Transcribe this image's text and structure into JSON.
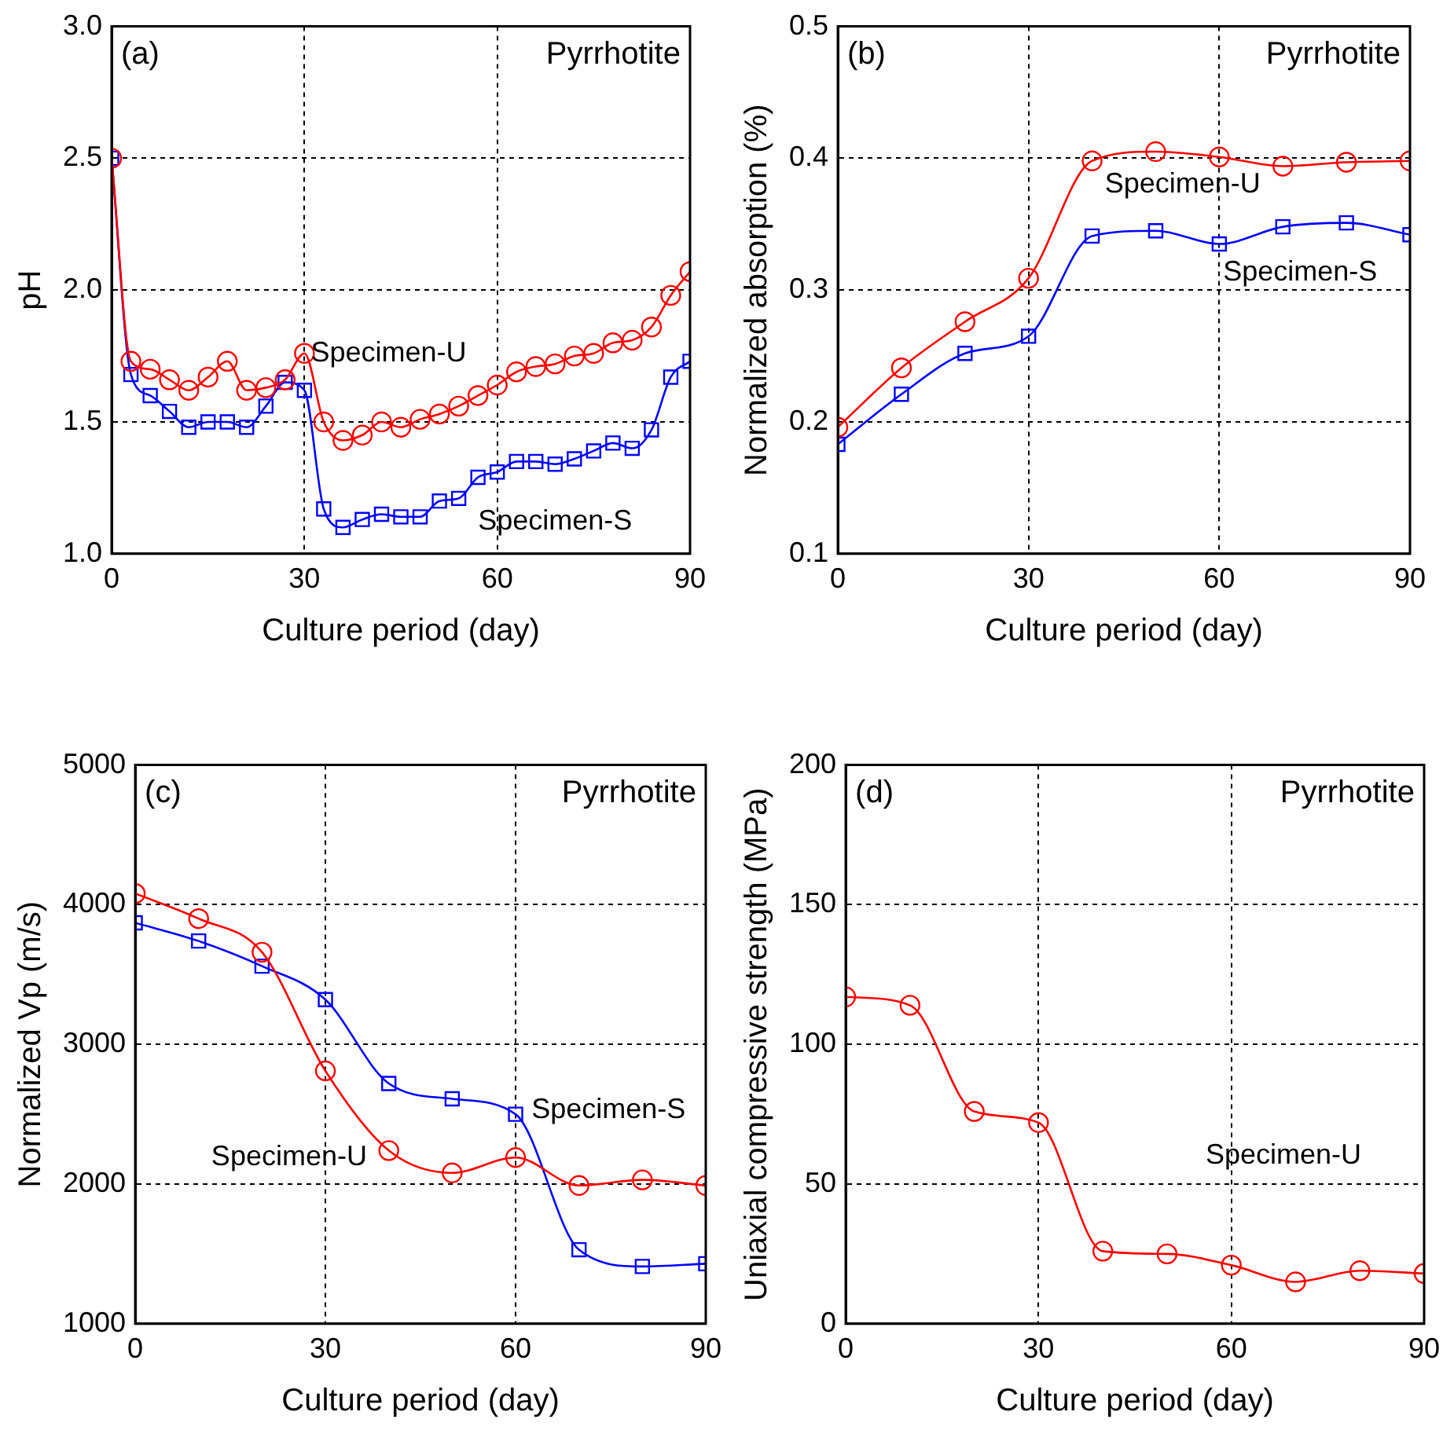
{
  "chart_data": [
    {
      "type": "line",
      "title": "Pyrrhotite",
      "annotations": [
        "(a)"
      ],
      "xlabel": "Culture period (day)",
      "ylabel": "pH",
      "x": [
        0,
        3,
        6,
        9,
        12,
        15,
        18,
        21,
        24,
        27,
        30,
        33,
        36,
        39,
        42,
        45,
        48,
        51,
        54,
        57,
        60,
        63,
        66,
        69,
        72,
        75,
        78,
        81,
        84,
        87,
        90
      ],
      "xlim": [
        0,
        90
      ],
      "xticks": [
        0,
        30,
        60,
        90
      ],
      "ylim": [
        1,
        3
      ],
      "yticks": [
        {
          "value": 1,
          "label": "1.0"
        },
        1.5,
        {
          "value": 2,
          "label": "2.0"
        },
        2.5,
        {
          "value": 3,
          "label": "3.0"
        }
      ],
      "grid": true,
      "series": [
        {
          "name": "Specimen-U",
          "color": "#ff0000",
          "marker": "circle",
          "values": [
            2.5,
            1.73,
            1.7,
            1.66,
            1.62,
            1.67,
            1.73,
            1.62,
            1.63,
            1.66,
            1.76,
            1.5,
            1.43,
            1.45,
            1.5,
            1.48,
            1.51,
            1.53,
            1.56,
            1.6,
            1.64,
            1.69,
            1.71,
            1.72,
            1.75,
            1.76,
            1.8,
            1.81,
            1.86,
            1.98,
            2.07
          ]
        },
        {
          "name": "Specimen-S",
          "color": "#0000ff",
          "marker": "square",
          "values": [
            2.5,
            1.68,
            1.6,
            1.54,
            1.48,
            1.5,
            1.5,
            1.48,
            1.56,
            1.65,
            1.62,
            1.17,
            1.1,
            1.13,
            1.15,
            1.14,
            1.14,
            1.2,
            1.21,
            1.29,
            1.31,
            1.35,
            1.35,
            1.34,
            1.36,
            1.39,
            1.42,
            1.4,
            1.47,
            1.67,
            1.73
          ]
        }
      ]
    },
    {
      "type": "line",
      "title": "Pyrrhotite",
      "annotations": [
        "(b)"
      ],
      "xlabel": "Culture period (day)",
      "ylabel": "Normalized absorption (%)",
      "x": [
        0,
        10,
        20,
        30,
        40,
        50,
        60,
        70,
        80,
        90
      ],
      "xlim": [
        0,
        90
      ],
      "xticks": [
        0,
        30,
        60,
        90
      ],
      "ylim": [
        0.1,
        0.5
      ],
      "yticks": [
        0.1,
        0.2,
        0.3,
        0.4,
        0.5
      ],
      "grid": true,
      "series": [
        {
          "name": "Specimen-U",
          "color": "#ff0000",
          "marker": "circle",
          "values": [
            0.196,
            0.241,
            0.276,
            0.309,
            0.398,
            0.405,
            0.401,
            0.394,
            0.397,
            0.398
          ]
        },
        {
          "name": "Specimen-S",
          "color": "#0000ff",
          "marker": "square",
          "values": [
            0.183,
            0.221,
            0.252,
            0.265,
            0.341,
            0.345,
            0.335,
            0.348,
            0.351,
            0.342
          ]
        }
      ]
    },
    {
      "type": "line",
      "title": "Pyrrhotite",
      "annotations": [
        "(c)"
      ],
      "xlabel": "Culture period (day)",
      "ylabel": "Normalized Vp (m/s)",
      "x": [
        0,
        10,
        20,
        30,
        40,
        50,
        60,
        70,
        80,
        90
      ],
      "xlim": [
        0,
        90
      ],
      "xticks": [
        0,
        30,
        60,
        90
      ],
      "ylim": [
        1000,
        5000
      ],
      "yticks": [
        1000,
        2000,
        3000,
        4000,
        5000
      ],
      "grid": true,
      "series": [
        {
          "name": "Specimen-U",
          "color": "#ff0000",
          "marker": "circle",
          "values": [
            4080,
            3900,
            3660,
            2810,
            2240,
            2080,
            2190,
            1990,
            2030,
            1990
          ]
        },
        {
          "name": "Specimen-S",
          "color": "#0000ff",
          "marker": "square",
          "values": [
            3870,
            3740,
            3560,
            3320,
            2720,
            2610,
            2500,
            1530,
            1410,
            1430
          ]
        }
      ]
    },
    {
      "type": "line",
      "title": "Pyrrhotite",
      "annotations": [
        "(d)"
      ],
      "xlabel": "Culture period (day)",
      "ylabel": "Uniaxial compressive strength (MPa)",
      "x": [
        0,
        10,
        20,
        30,
        40,
        50,
        60,
        70,
        80,
        90
      ],
      "xlim": [
        0,
        90
      ],
      "xticks": [
        0,
        30,
        60,
        90
      ],
      "ylim": [
        0,
        200
      ],
      "yticks": [
        0,
        50,
        100,
        150,
        200
      ],
      "grid": true,
      "series": [
        {
          "name": "Specimen-U",
          "color": "#ff0000",
          "marker": "circle",
          "values": [
            117,
            114,
            76,
            72,
            26,
            25,
            21,
            15,
            19,
            18
          ]
        }
      ]
    }
  ]
}
